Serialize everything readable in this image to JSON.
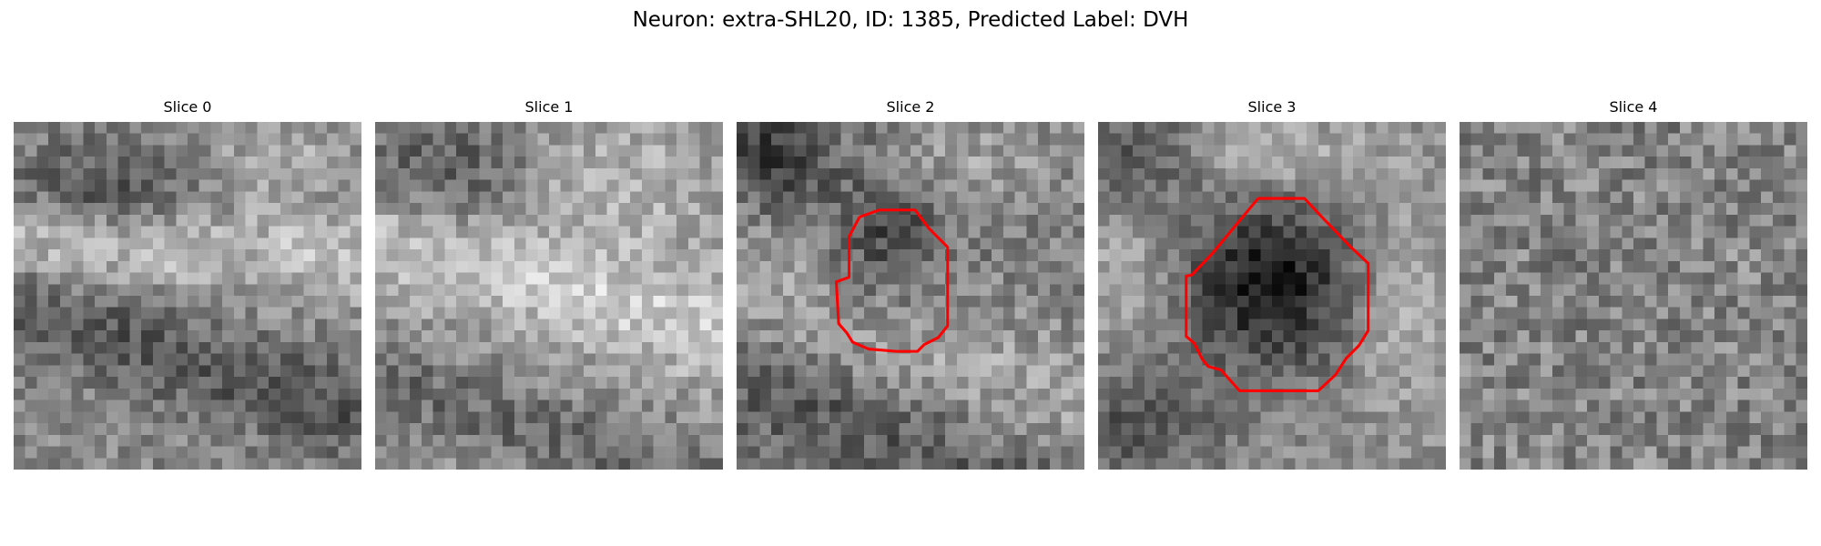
{
  "figure": {
    "title": "Neuron: extra-SHL20, ID: 1385, Predicted Label: DVH"
  },
  "panels": [
    {
      "title": "Slice 0",
      "has_contour": false,
      "seed": 11,
      "mean": 0.53,
      "contrast": 0.2,
      "noise": 0.14
    },
    {
      "title": "Slice 1",
      "has_contour": false,
      "seed": 23,
      "mean": 0.6,
      "contrast": 0.2,
      "noise": 0.14
    },
    {
      "title": "Slice 2",
      "has_contour": true,
      "seed": 37,
      "mean": 0.5,
      "contrast": 0.22,
      "noise": 0.15
    },
    {
      "title": "Slice 3",
      "has_contour": true,
      "seed": 41,
      "mean": 0.55,
      "contrast": 0.26,
      "noise": 0.12
    },
    {
      "title": "Slice 4",
      "has_contour": false,
      "seed": 59,
      "mean": 0.52,
      "contrast": 0.05,
      "noise": 0.17
    }
  ],
  "style": {
    "contour_color": "#ff0000"
  }
}
